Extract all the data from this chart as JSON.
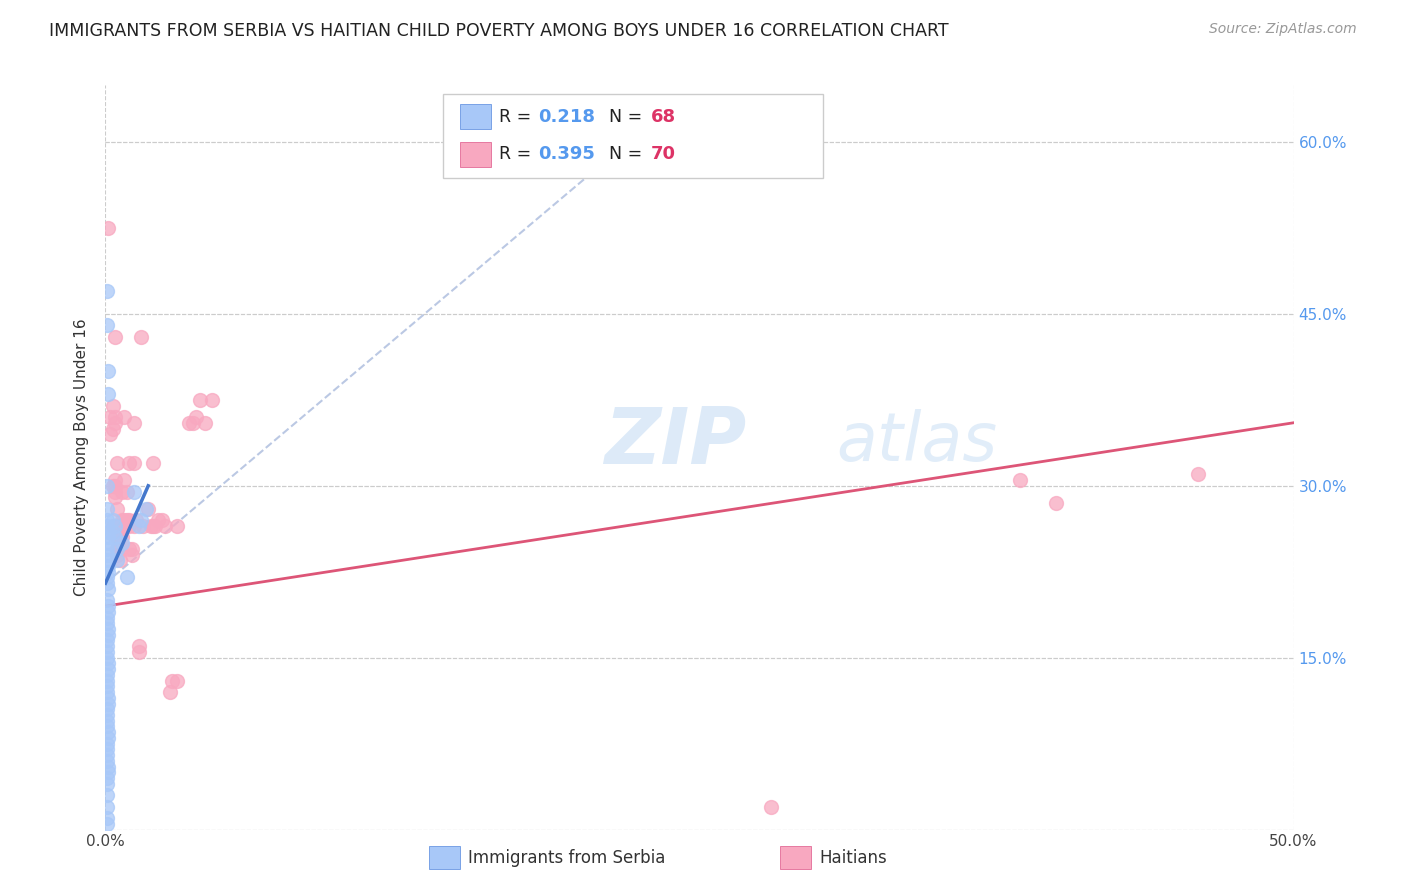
{
  "title": "IMMIGRANTS FROM SERBIA VS HAITIAN CHILD POVERTY AMONG BOYS UNDER 16 CORRELATION CHART",
  "source": "Source: ZipAtlas.com",
  "ylabel": "Child Poverty Among Boys Under 16",
  "xmin": 0.0,
  "xmax": 0.5,
  "ymin": 0.0,
  "ymax": 0.65,
  "yticks": [
    0.0,
    0.15,
    0.3,
    0.45,
    0.6
  ],
  "ytick_labels_right": [
    "",
    "15.0%",
    "30.0%",
    "45.0%",
    "60.0%"
  ],
  "serbia_color": "#a8c8f8",
  "serbia_edge_color": "#5588dd",
  "haiti_color": "#f8a8c0",
  "haiti_edge_color": "#dd5588",
  "serbia_line_color": "#4477cc",
  "serbia_dash_color": "#aabbdd",
  "haiti_line_color": "#dd5577",
  "serbia_R": 0.218,
  "serbia_N": 68,
  "haiti_R": 0.395,
  "haiti_N": 70,
  "watermark": "ZIPatlas",
  "background_color": "#ffffff",
  "grid_color": "#cccccc",
  "right_label_color": "#5599ee",
  "n_color": "#dd3366",
  "legend_box_color": "#cccccc",
  "serbia_scatter": [
    [
      0.0005,
      0.47
    ],
    [
      0.0005,
      0.44
    ],
    [
      0.001,
      0.4
    ],
    [
      0.001,
      0.38
    ],
    [
      0.0005,
      0.3
    ],
    [
      0.0005,
      0.28
    ],
    [
      0.0008,
      0.27
    ],
    [
      0.0008,
      0.265
    ],
    [
      0.001,
      0.26
    ],
    [
      0.0012,
      0.255
    ],
    [
      0.0005,
      0.25
    ],
    [
      0.0005,
      0.245
    ],
    [
      0.0008,
      0.24
    ],
    [
      0.0008,
      0.235
    ],
    [
      0.001,
      0.23
    ],
    [
      0.001,
      0.225
    ],
    [
      0.0005,
      0.22
    ],
    [
      0.0008,
      0.215
    ],
    [
      0.001,
      0.21
    ],
    [
      0.0005,
      0.2
    ],
    [
      0.0012,
      0.195
    ],
    [
      0.0012,
      0.19
    ],
    [
      0.0005,
      0.185
    ],
    [
      0.0008,
      0.18
    ],
    [
      0.001,
      0.175
    ],
    [
      0.001,
      0.17
    ],
    [
      0.0005,
      0.165
    ],
    [
      0.0005,
      0.16
    ],
    [
      0.0008,
      0.155
    ],
    [
      0.0008,
      0.15
    ],
    [
      0.001,
      0.145
    ],
    [
      0.001,
      0.14
    ],
    [
      0.0005,
      0.135
    ],
    [
      0.0005,
      0.13
    ],
    [
      0.0008,
      0.125
    ],
    [
      0.0008,
      0.12
    ],
    [
      0.001,
      0.115
    ],
    [
      0.001,
      0.11
    ],
    [
      0.0005,
      0.105
    ],
    [
      0.0005,
      0.1
    ],
    [
      0.0008,
      0.095
    ],
    [
      0.0008,
      0.09
    ],
    [
      0.001,
      0.085
    ],
    [
      0.001,
      0.08
    ],
    [
      0.0005,
      0.075
    ],
    [
      0.0005,
      0.07
    ],
    [
      0.0008,
      0.065
    ],
    [
      0.0008,
      0.06
    ],
    [
      0.001,
      0.055
    ],
    [
      0.001,
      0.05
    ],
    [
      0.0008,
      0.045
    ],
    [
      0.0008,
      0.04
    ],
    [
      0.0005,
      0.03
    ],
    [
      0.0005,
      0.02
    ],
    [
      0.0008,
      0.01
    ],
    [
      0.0008,
      0.005
    ],
    [
      0.003,
      0.27
    ],
    [
      0.003,
      0.26
    ],
    [
      0.004,
      0.265
    ],
    [
      0.004,
      0.255
    ],
    [
      0.005,
      0.245
    ],
    [
      0.005,
      0.235
    ],
    [
      0.007,
      0.25
    ],
    [
      0.009,
      0.22
    ],
    [
      0.012,
      0.295
    ],
    [
      0.014,
      0.265
    ],
    [
      0.015,
      0.27
    ],
    [
      0.017,
      0.28
    ]
  ],
  "haiti_scatter": [
    [
      0.001,
      0.525
    ],
    [
      0.002,
      0.36
    ],
    [
      0.002,
      0.345
    ],
    [
      0.003,
      0.37
    ],
    [
      0.003,
      0.35
    ],
    [
      0.003,
      0.3
    ],
    [
      0.003,
      0.265
    ],
    [
      0.004,
      0.43
    ],
    [
      0.004,
      0.36
    ],
    [
      0.004,
      0.355
    ],
    [
      0.004,
      0.305
    ],
    [
      0.004,
      0.3
    ],
    [
      0.004,
      0.295
    ],
    [
      0.004,
      0.29
    ],
    [
      0.005,
      0.32
    ],
    [
      0.005,
      0.28
    ],
    [
      0.005,
      0.265
    ],
    [
      0.005,
      0.255
    ],
    [
      0.005,
      0.245
    ],
    [
      0.005,
      0.24
    ],
    [
      0.006,
      0.265
    ],
    [
      0.006,
      0.255
    ],
    [
      0.006,
      0.245
    ],
    [
      0.006,
      0.235
    ],
    [
      0.007,
      0.295
    ],
    [
      0.007,
      0.27
    ],
    [
      0.007,
      0.265
    ],
    [
      0.007,
      0.255
    ],
    [
      0.008,
      0.36
    ],
    [
      0.008,
      0.305
    ],
    [
      0.008,
      0.27
    ],
    [
      0.008,
      0.265
    ],
    [
      0.009,
      0.295
    ],
    [
      0.009,
      0.27
    ],
    [
      0.01,
      0.32
    ],
    [
      0.01,
      0.27
    ],
    [
      0.01,
      0.265
    ],
    [
      0.01,
      0.245
    ],
    [
      0.011,
      0.245
    ],
    [
      0.011,
      0.24
    ],
    [
      0.012,
      0.355
    ],
    [
      0.012,
      0.32
    ],
    [
      0.012,
      0.265
    ],
    [
      0.013,
      0.27
    ],
    [
      0.014,
      0.16
    ],
    [
      0.014,
      0.155
    ],
    [
      0.015,
      0.43
    ],
    [
      0.016,
      0.265
    ],
    [
      0.018,
      0.28
    ],
    [
      0.019,
      0.265
    ],
    [
      0.02,
      0.32
    ],
    [
      0.02,
      0.265
    ],
    [
      0.021,
      0.265
    ],
    [
      0.022,
      0.27
    ],
    [
      0.024,
      0.27
    ],
    [
      0.025,
      0.265
    ],
    [
      0.027,
      0.12
    ],
    [
      0.028,
      0.13
    ],
    [
      0.03,
      0.265
    ],
    [
      0.03,
      0.13
    ],
    [
      0.035,
      0.355
    ],
    [
      0.037,
      0.355
    ],
    [
      0.038,
      0.36
    ],
    [
      0.04,
      0.375
    ],
    [
      0.042,
      0.355
    ],
    [
      0.045,
      0.375
    ],
    [
      0.28,
      0.02
    ],
    [
      0.385,
      0.305
    ],
    [
      0.4,
      0.285
    ],
    [
      0.46,
      0.31
    ]
  ],
  "serbia_solid_line": {
    "x0": 0.0,
    "y0": 0.215,
    "x1": 0.018,
    "y1": 0.3
  },
  "serbia_dash_line": {
    "x0": 0.0,
    "y0": 0.215,
    "x1": 0.22,
    "y1": 0.6
  },
  "haiti_line": {
    "x0": 0.0,
    "y0": 0.195,
    "x1": 0.5,
    "y1": 0.355
  }
}
